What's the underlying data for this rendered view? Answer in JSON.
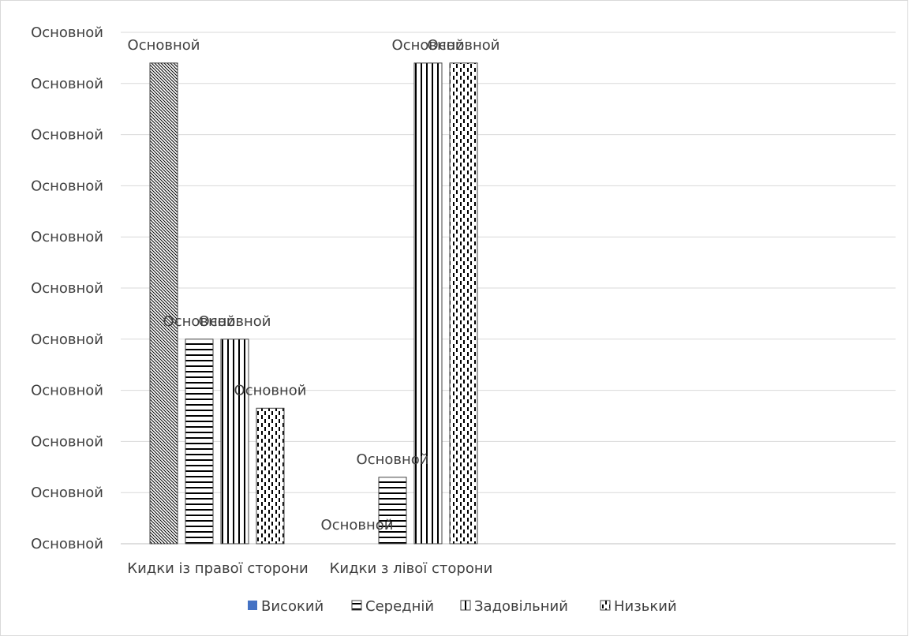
{
  "chart_data": {
    "type": "bar",
    "title": "",
    "xlabel": "",
    "ylabel": "",
    "ylim": [
      0,
      10
    ],
    "grid": true,
    "legend_position": "bottom",
    "y_tick_labels": [
      "Основной",
      "Основной",
      "Основной",
      "Основной",
      "Основной",
      "Основной",
      "Основной",
      "Основной",
      "Основной",
      "Основной",
      "Основной"
    ],
    "categories": [
      "Кидки із правої сторони",
      "Кидки з лівої сторони"
    ],
    "series": [
      {
        "name": "Високий",
        "values": [
          9.4,
          0
        ],
        "data_labels": [
          "Основной",
          "Основной"
        ],
        "pattern": "diagonal",
        "legend_color": "#4472c4"
      },
      {
        "name": "Середній",
        "values": [
          4.0,
          1.3
        ],
        "data_labels": [
          "Основной",
          "Основной"
        ],
        "pattern": "horizontal"
      },
      {
        "name": "Задовільний",
        "values": [
          4.0,
          9.4
        ],
        "data_labels": [
          "Основной",
          "Основной"
        ],
        "pattern": "vertical"
      },
      {
        "name": "Низький",
        "values": [
          2.65,
          9.4
        ],
        "data_labels": [
          "Основной",
          "Основной"
        ],
        "pattern": "dashed"
      }
    ]
  }
}
